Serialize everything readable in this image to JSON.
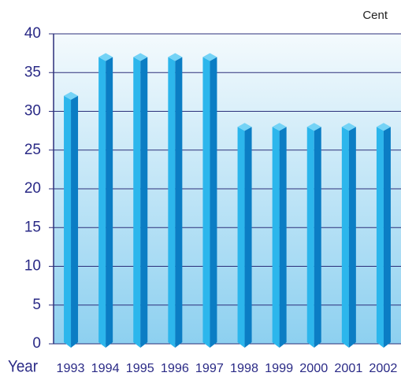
{
  "chart_data": {
    "type": "bar",
    "ylabel": "Cent",
    "xlabel": "Year",
    "categories": [
      "1993",
      "1994",
      "1995",
      "1996",
      "1997",
      "1998",
      "1999",
      "2000",
      "2001",
      "2002"
    ],
    "values": [
      32,
      37,
      37,
      37,
      37,
      28,
      28,
      28,
      28,
      28
    ],
    "color": "#1aa3e0",
    "ylim": [
      0,
      40
    ],
    "yticks": [
      0,
      5,
      10,
      15,
      20,
      25,
      30,
      35,
      40
    ],
    "grid": true
  }
}
